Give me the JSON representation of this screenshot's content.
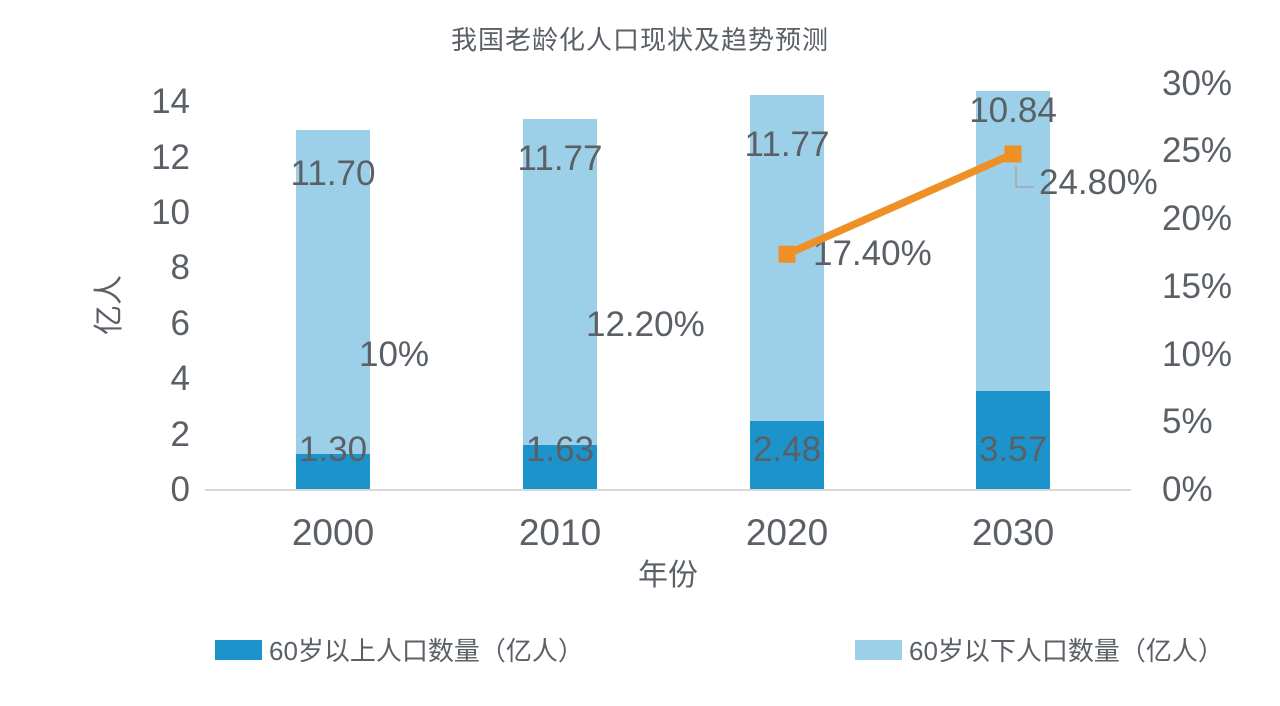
{
  "chart_data": {
    "type": "bar",
    "subtype": "stacked-column-with-line-overlay",
    "title": "我国老龄化人口现状及趋势预测",
    "xlabel": "年份",
    "ylabel_left": "亿人",
    "categories": [
      "2000",
      "2010",
      "2020",
      "2030"
    ],
    "left_axis": {
      "tick_labels": [
        "0",
        "2",
        "4",
        "6",
        "8",
        "10",
        "12",
        "14"
      ],
      "range": [
        0,
        14
      ],
      "unit": "亿人"
    },
    "right_axis": {
      "tick_labels": [
        "0%",
        "5%",
        "10%",
        "15%",
        "20%",
        "25%",
        "30%"
      ],
      "range": [
        0,
        30
      ],
      "unit": "%"
    },
    "bar_series": [
      {
        "name": "60岁以上人口数量（亿人）",
        "color": "#1C94CB",
        "values": [
          1.3,
          1.63,
          2.48,
          3.57
        ],
        "data_labels": [
          "1.30",
          "1.63",
          "2.48",
          "3.57"
        ]
      },
      {
        "name": "60岁以下人口数量（亿人）",
        "color": "#9CD0E8",
        "values": [
          11.7,
          11.77,
          11.77,
          10.84
        ],
        "data_labels": [
          "11.70",
          "11.77",
          "11.77",
          "10.84"
        ]
      }
    ],
    "line_series": {
      "axis": "right",
      "color": "#EE9025",
      "values_percent": [
        10,
        12.2,
        17.4,
        24.8
      ],
      "data_labels": [
        "10%",
        "12.20%",
        "17.40%",
        "24.80%"
      ],
      "marker": "square",
      "segment_drawn_between": [
        "2020",
        "2030"
      ],
      "callout_on": "2030"
    },
    "legend": {
      "position": "bottom",
      "entries": [
        "60岁以上人口数量（亿人）",
        "60岁以下人口数量（亿人）"
      ]
    },
    "grid": false,
    "colors": {
      "text": "#5A6066",
      "axis_line": "#D9D9D9",
      "leader_line": "#A6A6A6"
    }
  }
}
